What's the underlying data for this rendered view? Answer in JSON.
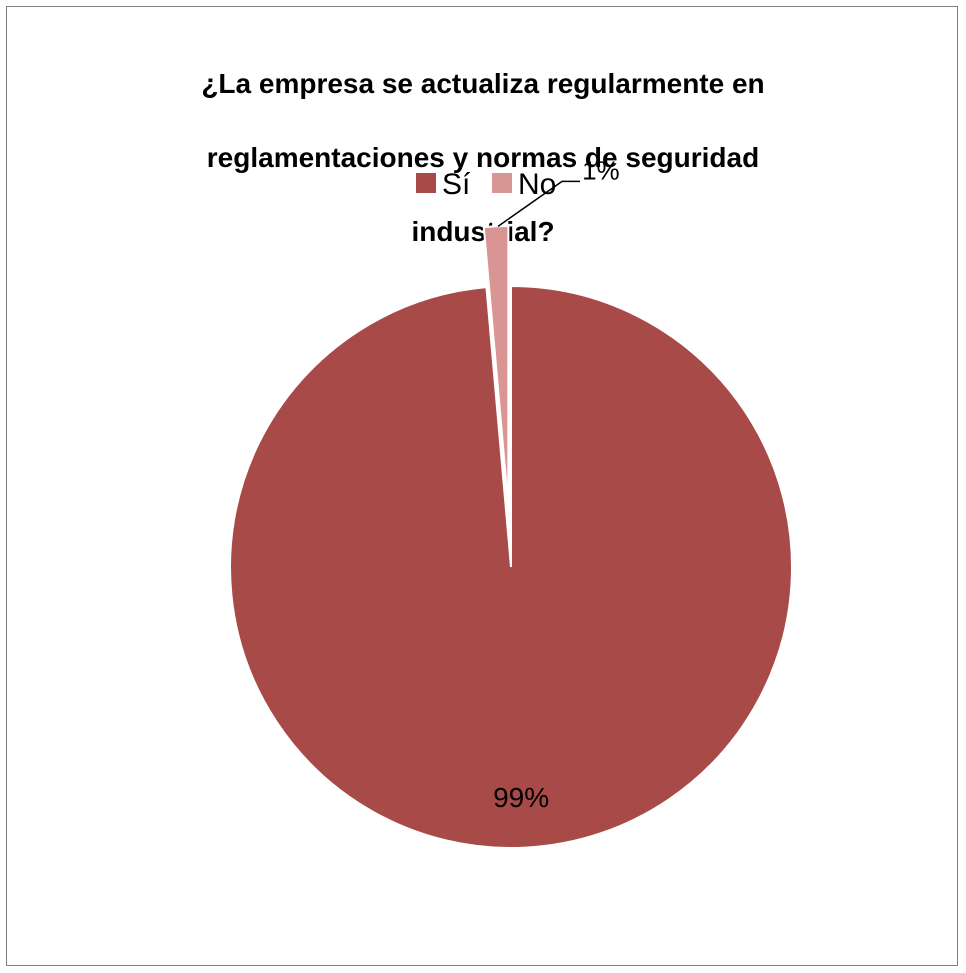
{
  "chart_data": {
    "type": "pie",
    "title": "¿La empresa  se actualiza regularmente en reglamentaciones y normas de seguridad industrial?",
    "title_lines": [
      "¿La empresa  se actualiza regularmente en",
      "reglamentaciones y normas de seguridad",
      "industrial?"
    ],
    "categories": [
      "Sí",
      "No"
    ],
    "values": [
      99,
      1
    ],
    "data_labels": [
      "99%",
      "1%"
    ],
    "colors": [
      "#a84a48",
      "#d99594"
    ],
    "legend_position": "top"
  }
}
